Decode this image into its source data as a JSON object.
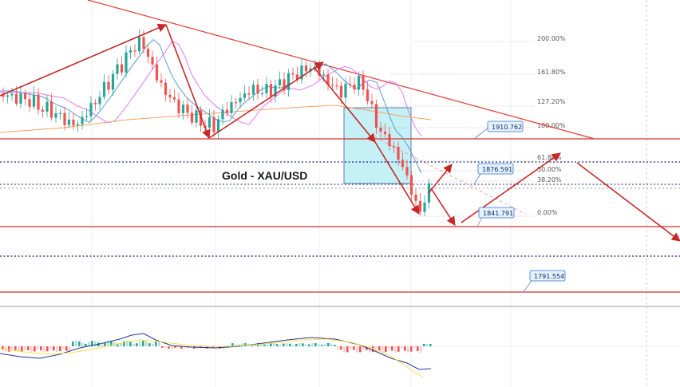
{
  "chart_data": {
    "type": "candlestick",
    "title": "Gold - XAU/USD",
    "colors": {
      "up": "#26a69a",
      "down": "#ef5350",
      "trendline": "#e53935",
      "arrow": "#c62828",
      "support": "#d32f2f",
      "dotted": "#1a237e",
      "box": "#b2ebf2",
      "ma_fast": "#5b9bd5",
      "ma_mid": "#e879f9",
      "ma_slow": "#f4a261",
      "label_bg": "#e3f2fd",
      "label_border": "#3a6fd8"
    },
    "fibonacci_levels": [
      "200.00%",
      "161.80%",
      "127.20%",
      "100.00%",
      "61.80%",
      "50.00%",
      "38.20%",
      "0.00%"
    ],
    "price_labels": [
      "1910.762",
      "1876.591",
      "1841.791",
      "1791.554"
    ]
  }
}
